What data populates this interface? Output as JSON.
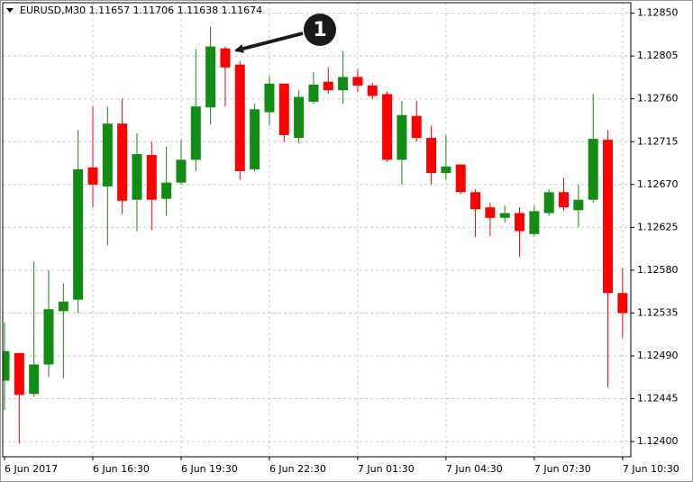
{
  "chart_data": {
    "type": "candlestick",
    "title": "EURUSD,M30  1.11657 1.11706 1.11638 1.11674",
    "annotation": "1",
    "categories": [
      "6 Jun 2017",
      null,
      null,
      null,
      null,
      null,
      "6 Jun 16:30",
      null,
      null,
      null,
      null,
      null,
      "6 Jun 19:30",
      null,
      null,
      null,
      null,
      null,
      "6 Jun 22:30",
      null,
      null,
      null,
      null,
      null,
      "7 Jun 01:30",
      null,
      null,
      null,
      null,
      null,
      "7 Jun 04:30",
      null,
      null,
      null,
      null,
      null,
      "7 Jun 07:30",
      null,
      null,
      null,
      null,
      null,
      "7 Jun 10:30"
    ],
    "open": [
      1.12464,
      1.12493,
      1.1245,
      1.12481,
      1.12537,
      1.12549,
      1.12688,
      1.12668,
      1.12734,
      1.12654,
      1.12701,
      1.12655,
      1.12672,
      1.12696,
      1.12751,
      1.12813,
      1.12796,
      1.12686,
      1.12746,
      1.12776,
      1.12719,
      1.12757,
      1.12778,
      1.12769,
      1.12783,
      1.12774,
      1.12765,
      1.12696,
      1.12742,
      1.12719,
      1.12682,
      1.12691,
      1.12662,
      1.12646,
      1.12635,
      1.1264,
      1.12618,
      1.1264,
      1.12662,
      1.12643,
      1.12654,
      1.12717,
      1.12556
    ],
    "high": [
      1.12525,
      1.12493,
      1.12589,
      1.1258,
      1.12566,
      1.12727,
      1.12752,
      1.12752,
      1.1276,
      1.12724,
      1.12715,
      1.1271,
      1.12717,
      1.12812,
      1.12836,
      1.12815,
      1.128,
      1.12755,
      1.12784,
      1.12776,
      1.12769,
      1.12788,
      1.12793,
      1.1281,
      1.12791,
      1.12777,
      1.12768,
      1.12758,
      1.12758,
      1.12732,
      1.12722,
      1.12691,
      1.12665,
      1.12651,
      1.12648,
      1.12646,
      1.12648,
      1.12665,
      1.12677,
      1.1267,
      1.12765,
      1.12727,
      1.12582
    ],
    "low": [
      1.12433,
      1.12398,
      1.12447,
      1.12468,
      1.12466,
      1.12535,
      1.12646,
      1.12606,
      1.12639,
      1.12621,
      1.12622,
      1.12637,
      1.1267,
      1.12684,
      1.12733,
      1.12752,
      1.12675,
      1.12684,
      1.12732,
      1.12715,
      1.12713,
      1.12755,
      1.12765,
      1.12755,
      1.12767,
      1.1276,
      1.12694,
      1.1267,
      1.12715,
      1.1267,
      1.12675,
      1.1266,
      1.12615,
      1.12616,
      1.1263,
      1.12594,
      1.12616,
      1.12637,
      1.12642,
      1.12625,
      1.12651,
      1.12457,
      1.12509
    ],
    "close": [
      1.12495,
      1.12449,
      1.12481,
      1.12539,
      1.12547,
      1.12686,
      1.1267,
      1.12734,
      1.12653,
      1.12702,
      1.12654,
      1.12672,
      1.12696,
      1.12752,
      1.12815,
      1.12793,
      1.12684,
      1.12749,
      1.12776,
      1.12722,
      1.12762,
      1.12775,
      1.12769,
      1.12783,
      1.12774,
      1.12763,
      1.12696,
      1.12743,
      1.12719,
      1.12682,
      1.12689,
      1.12662,
      1.12644,
      1.12635,
      1.1264,
      1.12621,
      1.12642,
      1.12662,
      1.12646,
      1.12654,
      1.12718,
      1.12556,
      1.12535
    ],
    "up_color": "#138c13",
    "down_color": "#ff0000",
    "ylim": [
      1.12384,
      1.12861
    ],
    "yticks": [
      {
        "value": 1.1285,
        "label": "1.12850"
      },
      1.12805,
      {
        "value": 1.1276,
        "label": "1.12760"
      },
      1.12715,
      {
        "value": 1.1267,
        "label": "1.12670"
      },
      1.12625,
      {
        "value": 1.1258,
        "label": "1.12580"
      },
      1.12535,
      {
        "value": 1.1249,
        "label": "1.12490"
      },
      1.12445,
      {
        "value": 1.124,
        "label": "1.12400"
      }
    ],
    "grid": true
  }
}
